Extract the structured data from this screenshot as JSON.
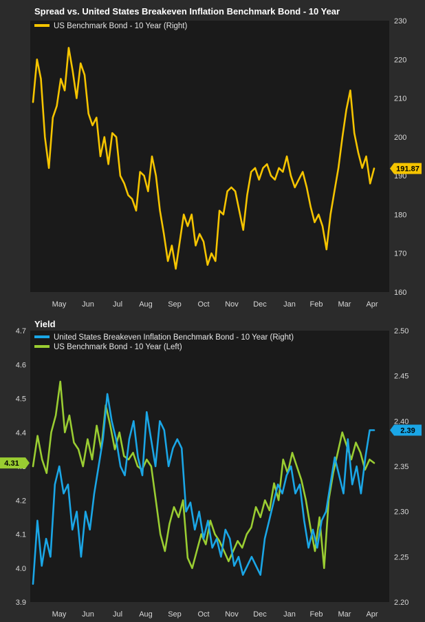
{
  "chart_data": [
    {
      "type": "line",
      "title": "Spread vs. United States Breakeven Inflation Benchmark Bond - 10 Year",
      "x_ticks": [
        "May",
        "Jun",
        "Jul",
        "Aug",
        "Sep",
        "Oct",
        "Nov",
        "Dec",
        "Jan",
        "Feb",
        "Mar",
        "Apr"
      ],
      "y_right_ticks": [
        "230",
        "220",
        "210",
        "200",
        "190",
        "180",
        "170",
        "160"
      ],
      "y_right_range": [
        160,
        230
      ],
      "legend_position": "top-left",
      "series": [
        {
          "name": "US Benchmark Bond - 10 Year (Right)",
          "axis": "right",
          "color": "#f5c400",
          "last_value_label": "191.87",
          "values": [
            209,
            220,
            215,
            200,
            192,
            205,
            208,
            215,
            212,
            223,
            217,
            210,
            219,
            216,
            206,
            203,
            205,
            195,
            200,
            193,
            201,
            200,
            190,
            188,
            185,
            184,
            181,
            191,
            190,
            186,
            195,
            190,
            181,
            175,
            168,
            172,
            166,
            173,
            180,
            177,
            180,
            172,
            175,
            173,
            167,
            170,
            168,
            181,
            180,
            186,
            187,
            186,
            181,
            176,
            185,
            191,
            192,
            189,
            192,
            193,
            190,
            189,
            192,
            191,
            195,
            190,
            187,
            189,
            191,
            187,
            182,
            178,
            180,
            177,
            171,
            180,
            186,
            192,
            200,
            207,
            212,
            201,
            196,
            192,
            195,
            188,
            191.87
          ]
        }
      ]
    },
    {
      "type": "line",
      "title": "Yield",
      "x_ticks": [
        "May",
        "Jun",
        "Jul",
        "Aug",
        "Sep",
        "Oct",
        "Nov",
        "Dec",
        "Jan",
        "Feb",
        "Mar",
        "Apr"
      ],
      "y_left_ticks": [
        "4.7",
        "4.6",
        "4.5",
        "4.4",
        "4.3",
        "4.2",
        "4.1",
        "4.0",
        "3.9"
      ],
      "y_left_range": [
        3.9,
        4.7
      ],
      "y_right_ticks": [
        "2.50",
        "2.45",
        "2.40",
        "2.35",
        "2.30",
        "2.25",
        "2.20"
      ],
      "y_right_range": [
        2.2,
        2.5
      ],
      "legend_position": "top-left",
      "series": [
        {
          "name": "United States Breakeven Inflation Benchmark Bond - 10 Year (Right)",
          "axis": "right",
          "color": "#1aa6e6",
          "last_value_label": "2.39",
          "values": [
            2.22,
            2.29,
            2.24,
            2.27,
            2.25,
            2.33,
            2.35,
            2.32,
            2.33,
            2.28,
            2.3,
            2.25,
            2.3,
            2.28,
            2.32,
            2.35,
            2.38,
            2.43,
            2.4,
            2.38,
            2.35,
            2.34,
            2.38,
            2.4,
            2.36,
            2.34,
            2.41,
            2.38,
            2.35,
            2.4,
            2.39,
            2.35,
            2.37,
            2.38,
            2.37,
            2.3,
            2.31,
            2.28,
            2.3,
            2.27,
            2.29,
            2.26,
            2.27,
            2.25,
            2.28,
            2.27,
            2.24,
            2.25,
            2.23,
            2.24,
            2.25,
            2.24,
            2.23,
            2.27,
            2.29,
            2.31,
            2.33,
            2.32,
            2.34,
            2.35,
            2.32,
            2.33,
            2.29,
            2.26,
            2.28,
            2.26,
            2.29,
            2.3,
            2.33,
            2.36,
            2.34,
            2.32,
            2.38,
            2.33,
            2.35,
            2.32,
            2.36,
            2.39,
            2.39
          ]
        },
        {
          "name": "US Benchmark Bond - 10 Year (Left)",
          "axis": "left",
          "color": "#9acd32",
          "last_value_label": "4.31",
          "values": [
            4.3,
            4.39,
            4.32,
            4.28,
            4.4,
            4.45,
            4.55,
            4.4,
            4.45,
            4.37,
            4.35,
            4.3,
            4.38,
            4.32,
            4.42,
            4.35,
            4.48,
            4.42,
            4.35,
            4.4,
            4.33,
            4.32,
            4.34,
            4.3,
            4.29,
            4.32,
            4.3,
            4.2,
            4.1,
            4.05,
            4.13,
            4.18,
            4.15,
            4.2,
            4.03,
            4.0,
            4.05,
            4.1,
            4.07,
            4.14,
            4.1,
            4.08,
            4.05,
            4.02,
            4.05,
            4.08,
            4.06,
            4.1,
            4.12,
            4.18,
            4.15,
            4.2,
            4.17,
            4.25,
            4.2,
            4.32,
            4.28,
            4.34,
            4.3,
            4.26,
            4.2,
            4.12,
            4.05,
            4.15,
            4.0,
            4.2,
            4.28,
            4.34,
            4.4,
            4.36,
            4.32,
            4.37,
            4.34,
            4.29,
            4.32,
            4.31
          ]
        }
      ]
    }
  ]
}
